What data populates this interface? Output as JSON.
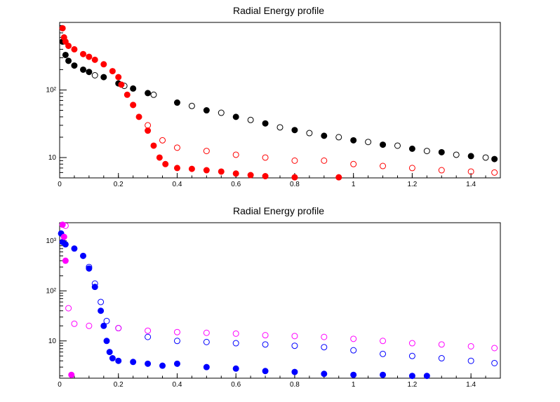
{
  "canvas_background": "#ffffff",
  "chart_data": [
    {
      "type": "scatter",
      "title": "Radial Energy profile",
      "xlabel": "",
      "ylabel": "",
      "xlim": [
        0,
        1.5
      ],
      "ylim": [
        5,
        1000
      ],
      "yscale": "log",
      "xticks": [
        0,
        0.2,
        0.4,
        0.6,
        0.8,
        1,
        1.2,
        1.4
      ],
      "xtick_labels": [
        "0",
        "0.2",
        "0.4",
        "0.6",
        "0.8",
        "1",
        "1.2",
        "1.4"
      ],
      "yticks": [
        10,
        100
      ],
      "ytick_labels": [
        "10",
        "10²"
      ],
      "series": [
        {
          "name": "black-filled",
          "color": "#000000",
          "marker": "filled-circle",
          "x": [
            0.01,
            0.02,
            0.03,
            0.05,
            0.08,
            0.1,
            0.15,
            0.2,
            0.25,
            0.3,
            0.4,
            0.5,
            0.6,
            0.7,
            0.8,
            0.9,
            1.0,
            1.1,
            1.2,
            1.3,
            1.4,
            1.48
          ],
          "y": [
            520,
            330,
            270,
            230,
            200,
            185,
            155,
            125,
            105,
            90,
            65,
            50,
            40,
            32,
            25.5,
            21,
            18,
            15.5,
            13.5,
            12,
            10.5,
            9.5
          ]
        },
        {
          "name": "black-open",
          "color": "#000000",
          "marker": "open-circle",
          "x": [
            0.12,
            0.22,
            0.32,
            0.45,
            0.55,
            0.65,
            0.75,
            0.85,
            0.95,
            1.05,
            1.15,
            1.25,
            1.35,
            1.45
          ],
          "y": [
            165,
            115,
            85,
            58,
            46,
            36,
            28,
            23,
            20,
            17,
            15,
            12.5,
            11,
            10
          ]
        },
        {
          "name": "red-filled",
          "color": "#ff0000",
          "marker": "filled-circle",
          "x": [
            0.01,
            0.015,
            0.02,
            0.03,
            0.05,
            0.08,
            0.1,
            0.12,
            0.15,
            0.18,
            0.2,
            0.21,
            0.23,
            0.25,
            0.27,
            0.3,
            0.32,
            0.34,
            0.36,
            0.4,
            0.45,
            0.5,
            0.55,
            0.6,
            0.65,
            0.7,
            0.8,
            0.95
          ],
          "y": [
            820,
            600,
            520,
            450,
            400,
            340,
            310,
            280,
            240,
            190,
            155,
            120,
            85,
            60,
            40,
            25,
            15,
            10,
            8,
            7,
            6.8,
            6.5,
            6.2,
            5.8,
            5.5,
            5.3,
            5.1,
            5.1
          ]
        },
        {
          "name": "red-open",
          "color": "#ff0000",
          "marker": "open-circle",
          "x": [
            0.25,
            0.3,
            0.35,
            0.4,
            0.5,
            0.6,
            0.7,
            0.8,
            0.9,
            1.0,
            1.1,
            1.2,
            1.3,
            1.4,
            1.48
          ],
          "y": [
            60,
            30,
            18,
            14,
            12.5,
            11,
            10,
            9,
            9,
            8,
            7.5,
            7,
            6.5,
            6.2,
            6
          ]
        }
      ]
    },
    {
      "type": "scatter",
      "title": "Radial Energy profile",
      "xlabel": "",
      "ylabel": "",
      "xlim": [
        0,
        1.5
      ],
      "ylim": [
        1.8,
        2300
      ],
      "yscale": "log",
      "xticks": [
        0,
        0.2,
        0.4,
        0.6,
        0.8,
        1,
        1.2,
        1.4
      ],
      "xtick_labels": [
        "0",
        "0.2",
        "0.4",
        "0.6",
        "0.8",
        "1",
        "1.2",
        "1.4"
      ],
      "yticks": [
        10,
        100,
        1000
      ],
      "ytick_labels": [
        "10",
        "10²",
        "10³"
      ],
      "series": [
        {
          "name": "blue-filled",
          "color": "#0000ff",
          "marker": "filled-circle",
          "x": [
            0.005,
            0.01,
            0.02,
            0.05,
            0.08,
            0.1,
            0.12,
            0.14,
            0.15,
            0.16,
            0.17,
            0.18,
            0.2,
            0.25,
            0.3,
            0.35,
            0.4,
            0.5,
            0.6,
            0.7,
            0.8,
            0.9,
            1.0,
            1.1,
            1.2,
            1.25
          ],
          "y": [
            1400,
            950,
            850,
            700,
            500,
            280,
            120,
            40,
            20,
            10,
            6,
            4.5,
            4,
            3.8,
            3.5,
            3.2,
            3.5,
            3,
            2.8,
            2.5,
            2.4,
            2.2,
            2.1,
            2.1,
            2.0,
            2.0
          ]
        },
        {
          "name": "blue-open",
          "color": "#0000ff",
          "marker": "open-circle",
          "x": [
            0.1,
            0.12,
            0.14,
            0.16,
            0.2,
            0.3,
            0.4,
            0.5,
            0.6,
            0.7,
            0.8,
            0.9,
            1.0,
            1.1,
            1.2,
            1.3,
            1.4,
            1.48
          ],
          "y": [
            300,
            140,
            60,
            25,
            18,
            12,
            10,
            9.5,
            9,
            8.5,
            8,
            7.5,
            6.5,
            5.5,
            5,
            4.5,
            4,
            3.6
          ]
        },
        {
          "name": "magenta-filled",
          "color": "#ff00ff",
          "marker": "filled-circle",
          "x": [
            0.01,
            0.015,
            0.02,
            0.04
          ],
          "y": [
            2100,
            1200,
            400,
            2.1
          ]
        },
        {
          "name": "magenta-open",
          "color": "#ff00ff",
          "marker": "open-circle",
          "x": [
            0.02,
            0.03,
            0.05,
            0.1,
            0.2,
            0.3,
            0.4,
            0.5,
            0.6,
            0.7,
            0.8,
            0.9,
            1.0,
            1.1,
            1.2,
            1.3,
            1.4,
            1.48
          ],
          "y": [
            2000,
            45,
            22,
            20,
            18,
            16,
            15,
            14.5,
            14,
            13,
            12.5,
            12,
            11,
            10,
            9,
            8.5,
            7.8,
            7.2
          ]
        }
      ]
    }
  ]
}
